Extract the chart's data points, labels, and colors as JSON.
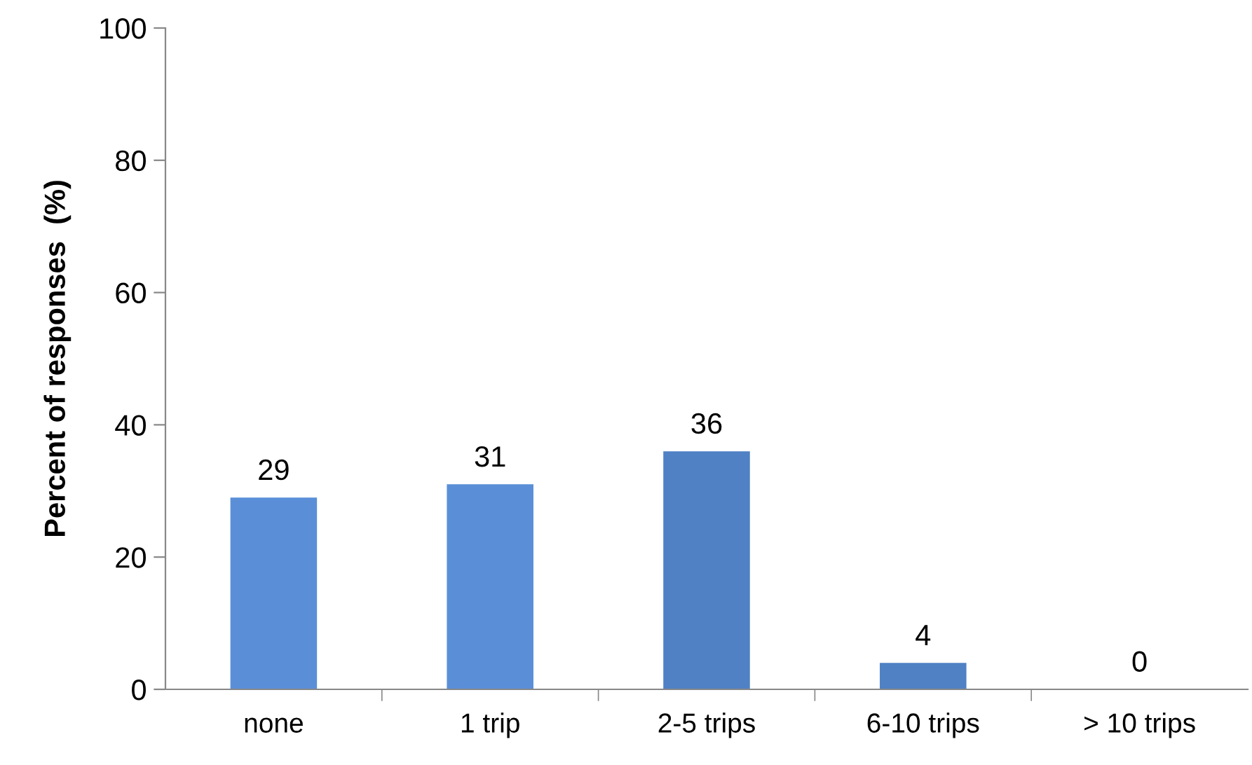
{
  "chart_data": {
    "type": "bar",
    "ylabel": "Percent of responses  (%)",
    "categories": [
      "none",
      "1 trip",
      "2-5 trips",
      "6-10 trips",
      "> 10 trips"
    ],
    "values": [
      29,
      31,
      36,
      4,
      0
    ],
    "colors": [
      "#5a8fd8",
      "#5a8fd8",
      "#4f81c4",
      "#4f81c4",
      "#4f81c4"
    ],
    "ylim": [
      0,
      100
    ],
    "yticks": [
      0,
      20,
      40,
      60,
      80,
      100
    ],
    "grid": false,
    "data_labels": true
  }
}
